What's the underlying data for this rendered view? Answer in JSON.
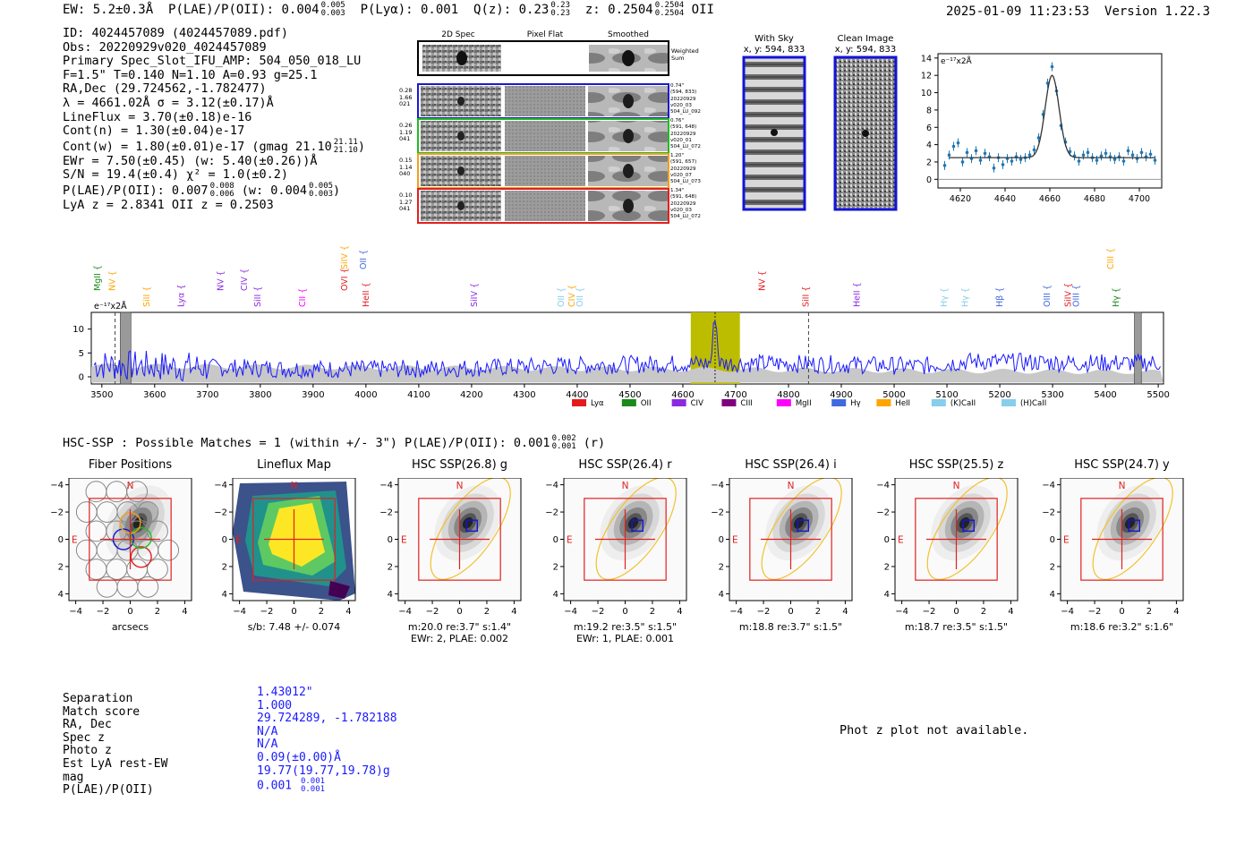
{
  "header": {
    "ew": "EW: 5.2±0.3Å",
    "plae_label": "P(LAE)/P(OII):",
    "plae_val": "0.004",
    "plae_hi": "0.005",
    "plae_lo": "0.003",
    "plya": "P(Lyα): 0.001",
    "qz_label": "Q(z): 0.23",
    "qz_hi": "0.23",
    "qz_lo": "0.23",
    "z_label": "z: 0.2504",
    "z_hi": "0.2504",
    "z_lo": "0.2504",
    "z_line": "OII",
    "datetime": "2025-01-09 11:23:53",
    "version": "Version 1.22.3"
  },
  "info": {
    "id": "ID: 4024457089 (4024457089.pdf)",
    "obs": "Obs: 20220929v020_4024457089",
    "primary": "Primary Spec_Slot_IFU_AMP: 504_050_018_LU",
    "params": "F=1.5\"  T=0.140  N=1.10  A=0.93  g=25.1",
    "radec": "RA,Dec (29.724562,-1.782477)",
    "lambda": "λ = 4661.02Å   σ = 3.12(±0.17)Å",
    "lineflux": "LineFlux = 3.70(±0.18)e-16",
    "contn": "Cont(n) = 1.30(±0.04)e-17",
    "contw": "Cont(w) = 1.80(±0.01)e-17 (gmag 21.10",
    "contw_hi": "21.11",
    "contw_lo": "21.10",
    "ewr": "EWr = 7.50(±0.45) (w: 5.40(±0.26))Å",
    "sn": "S/N = 19.4(±0.4)  χ² = 1.0(±0.2)",
    "plae2": "P(LAE)/P(OII): 0.007",
    "plae2_hi": "0.008",
    "plae2_lo": "0.006",
    "plae2_w": "(w: 0.004",
    "plae2_w_hi": "0.005",
    "plae2_w_lo": "0.003",
    "lyaz": "LyA z = 2.8341   OII z = 0.2503"
  },
  "cutouts": {
    "col_titles": [
      "2D Spec",
      "Pixel Flat",
      "Smoothed"
    ],
    "weighted_sum": "Weighted\nSum",
    "rows": [
      {
        "left": "0.28\n1.66\n021",
        "right": "0.74\"\n(594, 833)\n20220929\nv020_03\n504_LU_092",
        "color": "#1a1acc"
      },
      {
        "left": "0.26\n1.19\n041",
        "right": "0.76\"\n(591, 648)\n20220929\nv020_01\n504_LU_072",
        "color": "#22bb22"
      },
      {
        "left": "0.15\n1.14\n040",
        "right": "1.20\"\n(591, 657)\n20220929\nv020_07\n504_LU_073",
        "color": "#f2a020"
      },
      {
        "left": "0.10\n1.27\n041",
        "right": "1.34\"\n(591, 648)\n20220929\nv020_03\n504_LU_072",
        "color": "#e02020"
      }
    ]
  },
  "sky": {
    "with_sky_title": "With Sky",
    "with_sky_xy": "x, y: 594, 833",
    "clean_title": "Clean Image",
    "clean_xy": "x, y: 594, 833"
  },
  "colors": {
    "blue": "#1414d8",
    "spec_blue": "#1a1aff",
    "fit_blue": "#1f77b4",
    "red": "#e02020",
    "olive": "#bdbd00",
    "gold": "#f2c12e"
  },
  "zoom_chart": {
    "type": "scatter",
    "ylabel": "e⁻¹⁷x2Å",
    "xticks": [
      4620,
      4640,
      4660,
      4680,
      4700
    ],
    "yticks": [
      0,
      2,
      4,
      6,
      8,
      10,
      12,
      14
    ],
    "xlim": [
      4610,
      4710
    ],
    "ylim": [
      -1,
      14.5
    ],
    "fit_continuum": 2.5,
    "fit_peak": 12.0,
    "fit_center": 4661.0,
    "fit_sigma": 3.1,
    "points": [
      [
        4613,
        1.6
      ],
      [
        4615,
        2.8
      ],
      [
        4617,
        3.8
      ],
      [
        4619,
        4.2
      ],
      [
        4621,
        2.0
      ],
      [
        4623,
        3.1
      ],
      [
        4625,
        2.4
      ],
      [
        4627,
        3.3
      ],
      [
        4629,
        2.2
      ],
      [
        4631,
        3.0
      ],
      [
        4633,
        2.6
      ],
      [
        4635,
        1.3
      ],
      [
        4637,
        2.5
      ],
      [
        4639,
        1.7
      ],
      [
        4641,
        2.4
      ],
      [
        4643,
        2.1
      ],
      [
        4645,
        2.6
      ],
      [
        4647,
        2.3
      ],
      [
        4649,
        2.5
      ],
      [
        4651,
        2.8
      ],
      [
        4653,
        3.4
      ],
      [
        4655,
        4.8
      ],
      [
        4657,
        7.5
      ],
      [
        4659,
        11.1
      ],
      [
        4661,
        13.0
      ],
      [
        4663,
        10.2
      ],
      [
        4665,
        6.2
      ],
      [
        4667,
        4.3
      ],
      [
        4669,
        3.2
      ],
      [
        4671,
        2.7
      ],
      [
        4673,
        2.1
      ],
      [
        4675,
        2.8
      ],
      [
        4677,
        3.1
      ],
      [
        4679,
        2.5
      ],
      [
        4681,
        2.2
      ],
      [
        4683,
        2.7
      ],
      [
        4685,
        3.0
      ],
      [
        4687,
        2.6
      ],
      [
        4689,
        2.3
      ],
      [
        4691,
        2.6
      ],
      [
        4693,
        2.1
      ],
      [
        4695,
        3.3
      ],
      [
        4697,
        2.8
      ],
      [
        4699,
        2.4
      ],
      [
        4701,
        3.1
      ],
      [
        4703,
        2.6
      ],
      [
        4705,
        2.9
      ],
      [
        4707,
        2.2
      ]
    ]
  },
  "main_spectrum": {
    "type": "line",
    "ylabel": "e⁻¹⁷x2Å",
    "xlim": [
      3480,
      5510
    ],
    "ylim": [
      -1.5,
      13.5
    ],
    "xticks": [
      3500,
      3600,
      3700,
      3800,
      3900,
      4000,
      4100,
      4200,
      4300,
      4400,
      4500,
      4600,
      4700,
      4800,
      4900,
      5000,
      5100,
      5200,
      5300,
      5400,
      5500
    ],
    "yticks": [
      0,
      5,
      10
    ],
    "highlight_range": [
      4615,
      4708
    ],
    "peak_wave": 4661,
    "peak_flux": 12.8,
    "dashed_lines": [
      3525,
      4838
    ],
    "hatched_regions": [
      [
        3535,
        3555
      ],
      [
        5455,
        5468
      ]
    ],
    "legend": [
      {
        "name": "Lyα",
        "color": "#e41a1c"
      },
      {
        "name": "OII",
        "color": "#1a8a1a"
      },
      {
        "name": "CIV",
        "color": "#8a2be2"
      },
      {
        "name": "CIII",
        "color": "#800080"
      },
      {
        "name": "MgII",
        "color": "#ff00ff"
      },
      {
        "name": "Hγ",
        "color": "#4169e1"
      },
      {
        "name": "HeII",
        "color": "#ffa500"
      },
      {
        "name": "(K)CaII",
        "color": "#87ceeb"
      },
      {
        "name": "(H)CaII",
        "color": "#87ceeb"
      }
    ],
    "lines": [
      {
        "name": "MgII",
        "wave": 3497,
        "color": "#1a8a1a",
        "row": 1
      },
      {
        "name": "NV",
        "wave": 3525,
        "color": "#ffa500",
        "row": 1
      },
      {
        "name": "SiII",
        "wave": 3590,
        "color": "#ffa500",
        "row": 0
      },
      {
        "name": "Lyα",
        "wave": 3655,
        "color": "#8a2be2",
        "row": 0
      },
      {
        "name": "NV",
        "wave": 3730,
        "color": "#8a2be2",
        "row": 1
      },
      {
        "name": "CIV",
        "wave": 3775,
        "color": "#8a2be2",
        "row": 1
      },
      {
        "name": "SiII",
        "wave": 3800,
        "color": "#8a2be2",
        "row": 0
      },
      {
        "name": "CII",
        "wave": 3885,
        "color": "#ff00ff",
        "row": 0
      },
      {
        "name": "SiIV",
        "wave": 3965,
        "color": "#ffa500",
        "row": 2
      },
      {
        "name": "OII",
        "wave": 4000,
        "color": "#4169e1",
        "row": 2
      },
      {
        "name": "OVI",
        "wave": 3965,
        "color": "#e41a1c",
        "row": 1
      },
      {
        "name": "HeII",
        "wave": 4005,
        "color": "#e41a1c",
        "row": 0
      },
      {
        "name": "SiIV",
        "wave": 4210,
        "color": "#8a2be2",
        "row": 0
      },
      {
        "name": "OII",
        "wave": 4375,
        "color": "#87ceeb",
        "row": 0
      },
      {
        "name": "CIV",
        "wave": 4395,
        "color": "#ffa500",
        "row": 0
      },
      {
        "name": "OII",
        "wave": 4410,
        "color": "#87ceeb",
        "row": 0
      },
      {
        "name": "NV",
        "wave": 4755,
        "color": "#e41a1c",
        "row": 1
      },
      {
        "name": "SiII",
        "wave": 4838,
        "color": "#e41a1c",
        "row": 0
      },
      {
        "name": "HeII",
        "wave": 4935,
        "color": "#8a2be2",
        "row": 0
      },
      {
        "name": "Hγ",
        "wave": 5100,
        "color": "#87ceeb",
        "row": 0
      },
      {
        "name": "Hγ",
        "wave": 5140,
        "color": "#87ceeb",
        "row": 0
      },
      {
        "name": "Hβ",
        "wave": 5205,
        "color": "#4169e1",
        "row": 0
      },
      {
        "name": "OIII",
        "wave": 5295,
        "color": "#4169e1",
        "row": 0
      },
      {
        "name": "SiIV",
        "wave": 5335,
        "color": "#e41a1c",
        "row": 0
      },
      {
        "name": "OIII",
        "wave": 5350,
        "color": "#4169e1",
        "row": 0
      },
      {
        "name": "CIII",
        "wave": 5415,
        "color": "#ffa500",
        "row": 2
      },
      {
        "name": "Hγ",
        "wave": 5425,
        "color": "#1a8a1a",
        "row": 0
      }
    ]
  },
  "hsc": {
    "header": "HSC-SSP : Possible Matches = 1 (within +/- 3\")  P(LAE)/P(OII): 0.001",
    "header_hi": "0.002",
    "header_lo": "0.001",
    "header_band": "(r)",
    "ticks": [
      "−4",
      "−2",
      "0",
      "2",
      "4"
    ],
    "panels": [
      {
        "title": "Fiber Positions",
        "cap1": "arcsecs",
        "cap2": "",
        "kind": "fiber"
      },
      {
        "title": "Lineflux Map",
        "cap1": "s/b: 7.48 +/- 0.074",
        "cap2": "",
        "kind": "lineflux"
      },
      {
        "title": "HSC SSP(26.8) g",
        "cap1": "m:20.0  re:3.7\"  s:1.4\"",
        "cap2": "EWr: 2, PLAE: 0.002",
        "kind": "hsc",
        "ellipse": true
      },
      {
        "title": "HSC SSP(26.4) r",
        "cap1": "m:19.2  re:3.5\"  s:1.5\"",
        "cap2": "EWr: 1, PLAE: 0.001",
        "kind": "hsc",
        "ellipse": true
      },
      {
        "title": "HSC SSP(26.4) i",
        "cap1": "m:18.8  re:3.7\"  s:1.5\"",
        "cap2": "",
        "kind": "hsc",
        "ellipse": true
      },
      {
        "title": "HSC SSP(25.5) z",
        "cap1": "m:18.7  re:3.5\"  s:1.5\"",
        "cap2": "",
        "kind": "hsc",
        "ellipse": true
      },
      {
        "title": "HSC SSP(24.7) y",
        "cap1": "m:18.6  re:3.2\"  s:1.6\"",
        "cap2": "",
        "kind": "hsc",
        "ellipse": true
      }
    ],
    "north": "N",
    "east": "E"
  },
  "match_table": {
    "rows": [
      {
        "label": "Separation",
        "value": "1.43012\""
      },
      {
        "label": "Match score",
        "value": "1.000"
      },
      {
        "label": "RA, Dec",
        "value": "29.724289, -1.782188"
      },
      {
        "label": "Spec z",
        "value": "N/A"
      },
      {
        "label": "Photo z",
        "value": "N/A"
      },
      {
        "label": "Est LyA rest-EW",
        "value": "0.09(±0.00)Å"
      },
      {
        "label": "mag",
        "value": "19.77(19.77,19.78)g"
      },
      {
        "label": "P(LAE)/P(OII)",
        "value": "0.001"
      }
    ],
    "plae_hi": "0.001",
    "plae_lo": "0.001"
  },
  "phot_z": "Phot z plot not available."
}
